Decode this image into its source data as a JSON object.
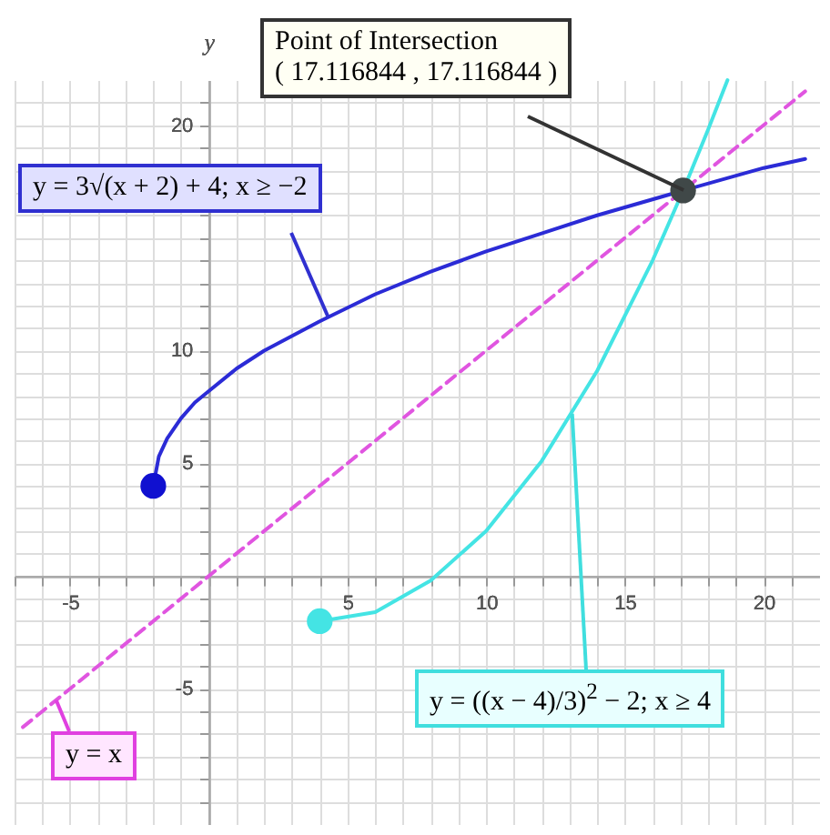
{
  "chart_data": {
    "type": "line",
    "ylabel": "y",
    "xlim": [
      -7,
      22
    ],
    "ylim": [
      -11,
      22
    ],
    "xticks": [
      {
        "value": -7,
        "label": null
      },
      {
        "value": -6,
        "label": null
      },
      -5,
      {
        "value": -4,
        "label": null
      },
      {
        "value": -3,
        "label": null
      },
      {
        "value": -2,
        "label": null
      },
      {
        "value": -1,
        "label": null
      },
      {
        "value": 0,
        "label": null
      },
      {
        "value": 1,
        "label": null
      },
      {
        "value": 2,
        "label": null
      },
      {
        "value": 3,
        "label": null
      },
      {
        "value": 4,
        "label": null
      },
      5,
      {
        "value": 6,
        "label": null
      },
      {
        "value": 7,
        "label": null
      },
      {
        "value": 8,
        "label": null
      },
      {
        "value": 9,
        "label": null
      },
      10,
      {
        "value": 11,
        "label": null
      },
      {
        "value": 12,
        "label": null
      },
      {
        "value": 13,
        "label": null
      },
      {
        "value": 14,
        "label": null
      },
      15,
      {
        "value": 16,
        "label": null
      },
      {
        "value": 17,
        "label": null
      },
      {
        "value": 18,
        "label": null
      },
      {
        "value": 19,
        "label": null
      },
      20,
      {
        "value": 21,
        "label": null
      }
    ],
    "yticks": [
      {
        "value": -10,
        "label": null
      },
      {
        "value": -9,
        "label": null
      },
      {
        "value": -8,
        "label": null
      },
      {
        "value": -7,
        "label": null
      },
      {
        "value": -6,
        "label": null
      },
      -5,
      {
        "value": -4,
        "label": null
      },
      {
        "value": -3,
        "label": null
      },
      {
        "value": -2,
        "label": null
      },
      {
        "value": -1,
        "label": null
      },
      {
        "value": 0,
        "label": null
      },
      {
        "value": 1,
        "label": null
      },
      {
        "value": 2,
        "label": null
      },
      {
        "value": 3,
        "label": null
      },
      {
        "value": 4,
        "label": null
      },
      5,
      {
        "value": 6,
        "label": null
      },
      {
        "value": 7,
        "label": null
      },
      {
        "value": 8,
        "label": null
      },
      {
        "value": 9,
        "label": null
      },
      10,
      {
        "value": 11,
        "label": null
      },
      {
        "value": 12,
        "label": null
      },
      {
        "value": 13,
        "label": null
      },
      {
        "value": 14,
        "label": null
      },
      {
        "value": 15,
        "label": null
      },
      {
        "value": 16,
        "label": null
      },
      {
        "value": 17,
        "label": null
      },
      {
        "value": 18,
        "label": null
      },
      {
        "value": 19,
        "label": null
      },
      20,
      {
        "value": 21,
        "label": null
      }
    ],
    "grid": true,
    "series": [
      {
        "color": "#2b2bd6",
        "x": [
          -2,
          -1.8,
          -1.5,
          -1,
          -0.5,
          0,
          1,
          2,
          4,
          6,
          8,
          10,
          12,
          14,
          17.1,
          20,
          21.5
        ],
        "values": [
          4,
          5.3,
          6.1,
          7,
          7.7,
          8.2,
          9.2,
          10,
          11.3,
          12.5,
          13.5,
          14.4,
          15.2,
          16,
          17.1,
          18.1,
          18.5
        ]
      },
      {
        "color": "#e055e0",
        "line_style": "dashed",
        "x": [
          -6.7,
          21.5
        ],
        "values": [
          -6.7,
          21.5
        ]
      },
      {
        "color": "#44e4e4",
        "x": [
          4,
          6,
          8,
          10,
          12,
          14,
          16,
          17.1,
          18,
          18.7
        ],
        "values": [
          -2,
          -1.6,
          -0.2,
          2,
          5.1,
          9.1,
          14,
          17.1,
          19.8,
          22
        ]
      },
      {
        "type": "scatter",
        "x": [
          -2,
          4,
          17.1
        ],
        "values": [
          4,
          -2,
          17.1
        ],
        "colors": [
          "#1010d0",
          "#44e4e4",
          "#404848"
        ]
      }
    ],
    "annotations": [
      {
        "text": "Point of Intersection\n( 17.116844 , 17.116844 )",
        "x": 17.116844,
        "y": 17.116844
      },
      {
        "text": "y = 3√(x + 2) + 4; x ≥ −2",
        "x": 4.3,
        "y": 11.5
      },
      {
        "text": "y = x",
        "x": -5.5,
        "y": -5.5
      },
      {
        "text": "y = ((x − 4)/3)$^{2}$ − 2; x ≥ 4",
        "x": 13.1,
        "y": 7.2
      }
    ]
  }
}
